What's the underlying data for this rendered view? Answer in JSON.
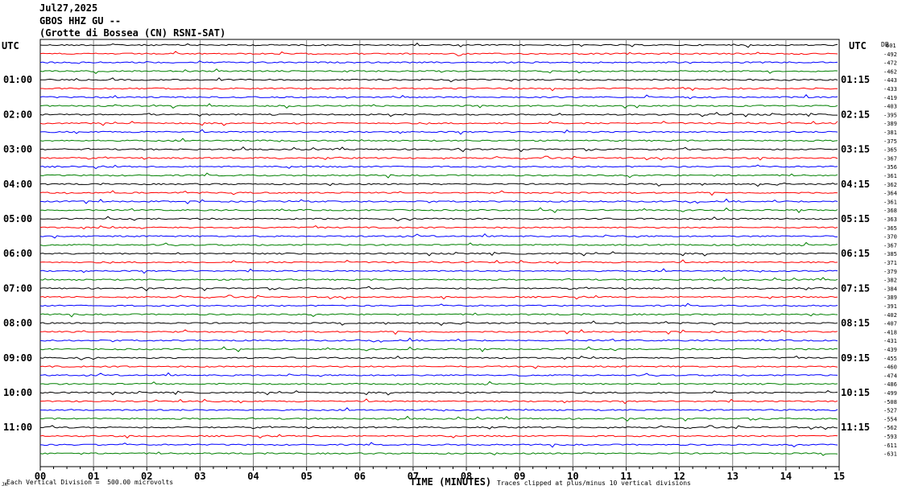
{
  "header": {
    "date": "Jul27,2025",
    "station": "GBOS HHZ GU --",
    "location": "(Grotte di Bossea (CN) RSNI-SAT)"
  },
  "utc_label": "UTC",
  "footer": {
    "left_note": "Each Vertical Division =  500.00 microvolts",
    "x_title": "TIME (MINUTES)",
    "right_note": "Traces clipped at plus/minus 10 vertical divisions",
    "corner_mark": "JK"
  },
  "colors": {
    "black": "#000000",
    "red": "#ff0000",
    "blue": "#0000ff",
    "green": "#008000",
    "grid": "#808080"
  },
  "chart_data": {
    "type": "line",
    "title": "",
    "xlabel": "TIME (MINUTES)",
    "ylabel": "",
    "x_ticks": [
      "00",
      "01",
      "02",
      "03",
      "04",
      "05",
      "06",
      "07",
      "08",
      "09",
      "10",
      "11",
      "12",
      "13",
      "14",
      "15"
    ],
    "xlim": [
      0,
      15
    ],
    "grid": true,
    "trace_colors_cycle": [
      "black",
      "red",
      "blue",
      "green"
    ],
    "left_time_labels": [
      "01:00",
      "02:00",
      "03:00",
      "04:00",
      "05:00",
      "06:00",
      "07:00",
      "08:00",
      "09:00",
      "10:00",
      "11:00"
    ],
    "right_time_labels": [
      "01:15",
      "02:15",
      "03:15",
      "04:15",
      "05:15",
      "06:15",
      "07:15",
      "08:15",
      "09:15",
      "10:15",
      "11:15"
    ],
    "right_header": "DB",
    "trace_levels": [
      "601",
      "-492",
      "-472",
      "-462",
      "-443",
      "-433",
      "-419",
      "-403",
      "-395",
      "-389",
      "-381",
      "-375",
      "-365",
      "-367",
      "-356",
      "-361",
      "-362",
      "-364",
      "-361",
      "-368",
      "-363",
      "-365",
      "-370",
      "-367",
      "-385",
      "-371",
      "-379",
      "-382",
      "-384",
      "-389",
      "-391",
      "-402",
      "-407",
      "-418",
      "-431",
      "-439",
      "-455",
      "-460",
      "-474",
      "-486",
      "-499",
      "-508",
      "-527",
      "-554",
      "-562",
      "-593",
      "-611",
      "-631"
    ]
  }
}
